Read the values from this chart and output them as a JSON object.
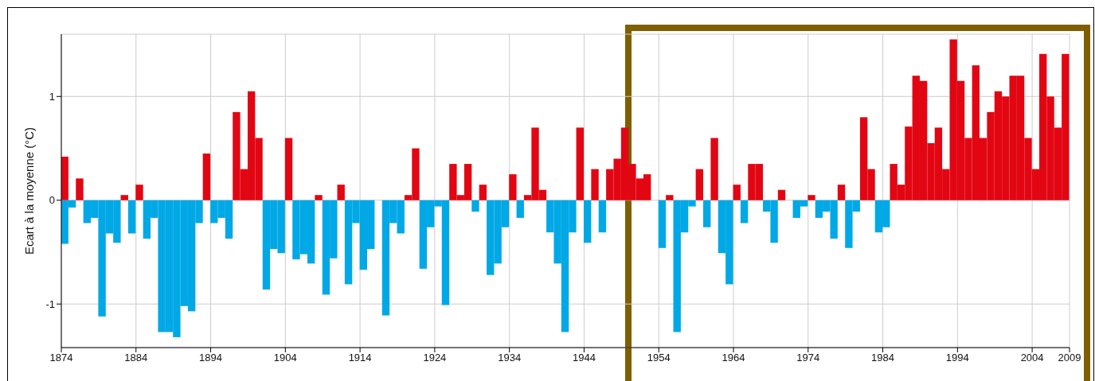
{
  "chart_data": {
    "type": "bar",
    "ylabel": "Ecart à la moyenne (°C)",
    "x": [
      1874,
      1875,
      1876,
      1877,
      1878,
      1879,
      1880,
      1881,
      1882,
      1883,
      1884,
      1885,
      1886,
      1887,
      1888,
      1889,
      1890,
      1891,
      1892,
      1893,
      1894,
      1895,
      1896,
      1897,
      1898,
      1899,
      1900,
      1901,
      1902,
      1903,
      1904,
      1905,
      1906,
      1907,
      1908,
      1909,
      1910,
      1911,
      1912,
      1913,
      1914,
      1915,
      1916,
      1917,
      1918,
      1919,
      1920,
      1921,
      1922,
      1923,
      1924,
      1925,
      1926,
      1927,
      1928,
      1929,
      1930,
      1931,
      1932,
      1933,
      1934,
      1935,
      1936,
      1937,
      1938,
      1939,
      1940,
      1941,
      1942,
      1943,
      1944,
      1945,
      1946,
      1947,
      1948,
      1949,
      1950,
      1951,
      1952,
      1953,
      1954,
      1955,
      1956,
      1957,
      1958,
      1959,
      1960,
      1961,
      1962,
      1963,
      1964,
      1965,
      1966,
      1967,
      1968,
      1969,
      1970,
      1971,
      1972,
      1973,
      1974,
      1975,
      1976,
      1977,
      1978,
      1979,
      1980,
      1981,
      1982,
      1983,
      1984,
      1985,
      1986,
      1987,
      1988,
      1989,
      1990,
      1991,
      1992,
      1993,
      1994,
      1995,
      1996,
      1997,
      1998,
      1999,
      2000,
      2001,
      2002,
      2003,
      2004,
      2005,
      2006,
      2007,
      2008
    ],
    "series": [
      {
        "color": "#e20613",
        "values": [
          0.42,
          null,
          0.21,
          null,
          null,
          null,
          null,
          null,
          0.05,
          null,
          0.15,
          null,
          null,
          null,
          null,
          null,
          null,
          null,
          null,
          0.45,
          null,
          null,
          null,
          0.85,
          0.3,
          1.05,
          0.6,
          null,
          null,
          null,
          0.6,
          null,
          null,
          null,
          0.05,
          null,
          null,
          0.15,
          null,
          null,
          null,
          null,
          null,
          null,
          null,
          null,
          0.05,
          0.5,
          null,
          null,
          null,
          null,
          0.35,
          0.05,
          0.35,
          null,
          0.15,
          null,
          null,
          null,
          0.25,
          null,
          0.05,
          0.7,
          0.1,
          null,
          null,
          null,
          null,
          0.7,
          null,
          0.3,
          null,
          0.3,
          0.4,
          0.7,
          0.35,
          0.21,
          0.25,
          null,
          null,
          0.05,
          null,
          null,
          null,
          0.3,
          null,
          0.6,
          null,
          null,
          0.15,
          null,
          0.35,
          0.35,
          null,
          null,
          0.1,
          null,
          null,
          null,
          0.05,
          null,
          null,
          null,
          0.15,
          null,
          null,
          0.8,
          0.3,
          null,
          null,
          0.35,
          0.15,
          0.71,
          1.2,
          1.15,
          0.55,
          0.7,
          0.3,
          1.55,
          1.15,
          0.6,
          1.3,
          0.6,
          0.85,
          1.05,
          1.0,
          1.2,
          1.2,
          0.6,
          0.3,
          1.41,
          1.0,
          0.7,
          1.41
        ]
      },
      {
        "color": "#00a8e6",
        "values": [
          -0.42,
          -0.07,
          null,
          -0.22,
          -0.17,
          -1.12,
          -0.32,
          -0.41,
          null,
          -0.32,
          null,
          -0.37,
          -0.17,
          -1.27,
          -1.27,
          -1.32,
          -1.02,
          -1.07,
          -0.22,
          null,
          -0.22,
          -0.17,
          -0.37,
          null,
          null,
          null,
          null,
          -0.86,
          -0.47,
          -0.51,
          null,
          -0.57,
          -0.52,
          -0.61,
          null,
          -0.91,
          -0.56,
          null,
          -0.81,
          -0.22,
          -0.67,
          -0.47,
          null,
          -1.11,
          -0.22,
          -0.32,
          null,
          null,
          -0.66,
          -0.26,
          -0.06,
          -1.01,
          null,
          null,
          null,
          -0.11,
          null,
          -0.72,
          -0.61,
          -0.26,
          null,
          -0.17,
          null,
          null,
          null,
          -0.31,
          -0.61,
          -1.27,
          -0.31,
          null,
          -0.41,
          null,
          -0.31,
          null,
          null,
          null,
          null,
          null,
          null,
          null,
          -0.46,
          null,
          -1.27,
          -0.31,
          -0.06,
          null,
          -0.26,
          null,
          -0.51,
          -0.81,
          null,
          -0.22,
          null,
          null,
          -0.11,
          -0.41,
          null,
          null,
          -0.17,
          -0.06,
          null,
          -0.17,
          -0.11,
          -0.37,
          null,
          -0.46,
          -0.11,
          null,
          null,
          -0.31,
          -0.26,
          null,
          null,
          null,
          null,
          null,
          null,
          null,
          null,
          null,
          null,
          null,
          null,
          null,
          null,
          null,
          null,
          null,
          null,
          null,
          null,
          null,
          null,
          null,
          null
        ]
      }
    ],
    "xlim": [
      1874,
      2009
    ],
    "xticks": [
      1874,
      1884,
      1894,
      1904,
      1914,
      1924,
      1934,
      1944,
      1954,
      1964,
      1974,
      1984,
      1994,
      2004,
      2009
    ],
    "ylim": [
      -1.42,
      1.6
    ],
    "yticks": [
      -1,
      0,
      1
    ],
    "grid": true
  }
}
